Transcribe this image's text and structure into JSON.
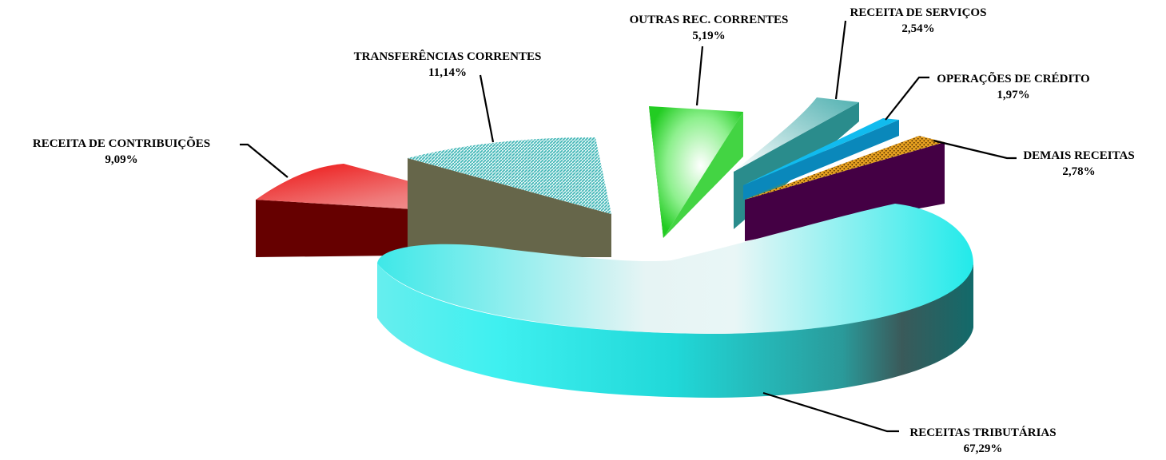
{
  "chart_data": {
    "type": "pie",
    "style": "3d-exploded",
    "slices": [
      {
        "label": "RECEITAS TRIBUTÁRIAS",
        "value_label": "67,29%",
        "value": 67.29,
        "color": "#22eaea",
        "side_color": "#1a8c8c"
      },
      {
        "label": "RECEITA DE CONTRIBUIÇÕES",
        "value_label": "9,09%",
        "value": 9.09,
        "color": "#ee3333",
        "side_color": "#660000"
      },
      {
        "label": "TRANSFERÊNCIAS CORRENTES",
        "value_label": "11,14%",
        "value": 11.14,
        "color": "#6fcfcf",
        "side_color": "#66664a"
      },
      {
        "label": "OUTRAS REC. CORRENTES",
        "value_label": "5,19%",
        "value": 5.19,
        "color": "#22dd22",
        "side_color": "#118811"
      },
      {
        "label": "RECEITA DE SERVIÇOS",
        "value_label": "2,54%",
        "value": 2.54,
        "color": "#5fb8b8",
        "side_color": "#2a8c8c"
      },
      {
        "label": "OPERAÇÕES DE CRÉDITO",
        "value_label": "1,97%",
        "value": 1.97,
        "color": "#11bbee",
        "side_color": "#0a88bb"
      },
      {
        "label": "DEMAIS RECEITAS",
        "value_label": "2,78%",
        "value": 2.78,
        "color": "#e6a020",
        "side_color": "#440044"
      }
    ]
  }
}
